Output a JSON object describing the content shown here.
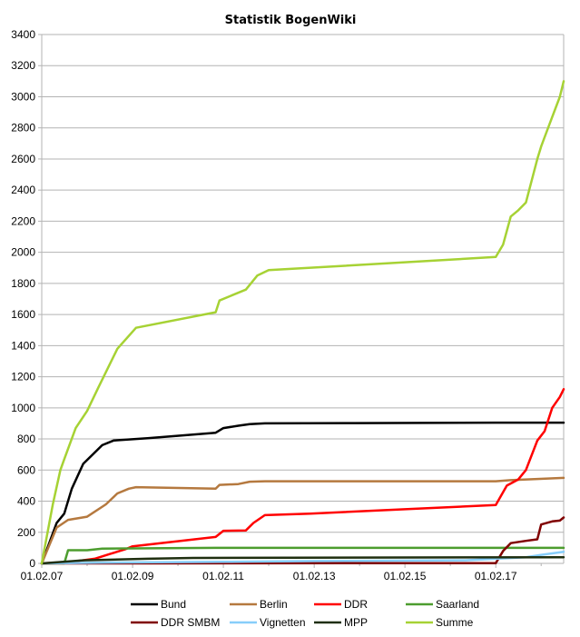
{
  "chart_data": {
    "type": "line",
    "title": "Statistik BogenWiki",
    "xlabel": "",
    "ylabel": "",
    "x_axis": "date",
    "xlim": [
      "2007-02-01",
      "2018-08-01"
    ],
    "xticks": [
      "2007-02-01",
      "2009-02-01",
      "2011-02-01",
      "2013-02-01",
      "2015-02-01",
      "2017-02-01"
    ],
    "xtick_labels": [
      "01.02.07",
      "01.02.09",
      "01.02.11",
      "01.02.13",
      "01.02.15",
      "01.02.17"
    ],
    "ylim": [
      0,
      3400
    ],
    "yticks": [
      0,
      200,
      400,
      600,
      800,
      1000,
      1200,
      1400,
      1600,
      1800,
      2000,
      2200,
      2400,
      2600,
      2800,
      3000,
      3200,
      3400
    ],
    "grid": "horizontal",
    "legend_position": "bottom",
    "series": [
      {
        "name": "Bund",
        "color": "#000000",
        "points": [
          [
            "2007-02-01",
            0
          ],
          [
            "2007-06-01",
            260
          ],
          [
            "2007-08-01",
            320
          ],
          [
            "2007-10-01",
            480
          ],
          [
            "2008-01-01",
            640
          ],
          [
            "2008-06-01",
            760
          ],
          [
            "2008-09-01",
            790
          ],
          [
            "2009-06-01",
            805
          ],
          [
            "2010-12-01",
            840
          ],
          [
            "2011-02-01",
            870
          ],
          [
            "2011-06-01",
            885
          ],
          [
            "2011-09-01",
            895
          ],
          [
            "2012-01-01",
            900
          ],
          [
            "2014-01-01",
            902
          ],
          [
            "2017-02-01",
            905
          ],
          [
            "2018-08-01",
            905
          ]
        ]
      },
      {
        "name": "Berlin",
        "color": "#b5793f",
        "points": [
          [
            "2007-02-01",
            0
          ],
          [
            "2007-06-01",
            230
          ],
          [
            "2007-09-01",
            280
          ],
          [
            "2008-02-01",
            300
          ],
          [
            "2008-07-01",
            380
          ],
          [
            "2008-10-01",
            450
          ],
          [
            "2009-01-01",
            480
          ],
          [
            "2009-03-01",
            490
          ],
          [
            "2010-12-01",
            480
          ],
          [
            "2011-01-01",
            505
          ],
          [
            "2011-06-01",
            510
          ],
          [
            "2011-09-01",
            525
          ],
          [
            "2012-01-01",
            528
          ],
          [
            "2017-02-01",
            528
          ],
          [
            "2017-06-01",
            535
          ],
          [
            "2018-08-01",
            550
          ]
        ]
      },
      {
        "name": "DDR",
        "color": "#ff0000",
        "points": [
          [
            "2007-02-01",
            0
          ],
          [
            "2007-10-01",
            10
          ],
          [
            "2008-04-01",
            30
          ],
          [
            "2008-08-01",
            60
          ],
          [
            "2008-12-01",
            90
          ],
          [
            "2009-02-01",
            110
          ],
          [
            "2010-12-01",
            170
          ],
          [
            "2011-02-01",
            210
          ],
          [
            "2011-08-01",
            212
          ],
          [
            "2011-10-01",
            260
          ],
          [
            "2012-01-01",
            310
          ],
          [
            "2013-01-01",
            320
          ],
          [
            "2017-02-01",
            375
          ],
          [
            "2017-05-01",
            500
          ],
          [
            "2017-08-01",
            540
          ],
          [
            "2017-10-01",
            600
          ],
          [
            "2018-01-01",
            790
          ],
          [
            "2018-03-01",
            850
          ],
          [
            "2018-05-01",
            1000
          ],
          [
            "2018-07-01",
            1070
          ],
          [
            "2018-08-01",
            1120
          ]
        ]
      },
      {
        "name": "Saarland",
        "color": "#4d9d2f",
        "points": [
          [
            "2007-02-01",
            0
          ],
          [
            "2007-08-01",
            0
          ],
          [
            "2007-09-01",
            85
          ],
          [
            "2008-02-01",
            85
          ],
          [
            "2008-06-01",
            95
          ],
          [
            "2010-12-01",
            100
          ],
          [
            "2018-08-01",
            100
          ]
        ]
      },
      {
        "name": "DDR SMBM",
        "color": "#800000",
        "points": [
          [
            "2007-02-01",
            0
          ],
          [
            "2017-02-01",
            2
          ],
          [
            "2017-04-01",
            80
          ],
          [
            "2017-06-01",
            130
          ],
          [
            "2017-10-01",
            145
          ],
          [
            "2018-01-01",
            155
          ],
          [
            "2018-02-01",
            250
          ],
          [
            "2018-05-01",
            270
          ],
          [
            "2018-07-01",
            275
          ],
          [
            "2018-08-01",
            295
          ]
        ]
      },
      {
        "name": "Vignetten",
        "color": "#87cefa",
        "points": [
          [
            "2007-02-01",
            0
          ],
          [
            "2008-06-01",
            5
          ],
          [
            "2011-02-01",
            10
          ],
          [
            "2013-02-01",
            15
          ],
          [
            "2016-06-01",
            20
          ],
          [
            "2017-10-01",
            40
          ],
          [
            "2018-02-01",
            55
          ],
          [
            "2018-08-01",
            75
          ]
        ]
      },
      {
        "name": "MPP",
        "color": "#1f2f10",
        "points": [
          [
            "2007-02-01",
            0
          ],
          [
            "2008-01-01",
            20
          ],
          [
            "2009-06-01",
            30
          ],
          [
            "2010-06-01",
            35
          ],
          [
            "2018-08-01",
            40
          ]
        ]
      },
      {
        "name": "Summe",
        "color": "#a6d234",
        "points": [
          [
            "2007-02-01",
            0
          ],
          [
            "2007-05-01",
            380
          ],
          [
            "2007-07-01",
            600
          ],
          [
            "2007-08-01",
            670
          ],
          [
            "2007-11-01",
            870
          ],
          [
            "2008-02-01",
            980
          ],
          [
            "2008-05-01",
            1130
          ],
          [
            "2008-10-01",
            1380
          ],
          [
            "2009-03-01",
            1515
          ],
          [
            "2010-12-01",
            1615
          ],
          [
            "2011-01-01",
            1690
          ],
          [
            "2011-04-01",
            1720
          ],
          [
            "2011-08-01",
            1760
          ],
          [
            "2011-11-01",
            1850
          ],
          [
            "2012-02-01",
            1885
          ],
          [
            "2017-02-01",
            1970
          ],
          [
            "2017-04-01",
            2050
          ],
          [
            "2017-06-01",
            2230
          ],
          [
            "2017-08-01",
            2270
          ],
          [
            "2017-10-01",
            2320
          ],
          [
            "2018-01-01",
            2600
          ],
          [
            "2018-02-01",
            2680
          ],
          [
            "2018-03-01",
            2740
          ],
          [
            "2018-05-01",
            2870
          ],
          [
            "2018-07-01",
            3000
          ],
          [
            "2018-08-01",
            3100
          ]
        ]
      }
    ]
  }
}
